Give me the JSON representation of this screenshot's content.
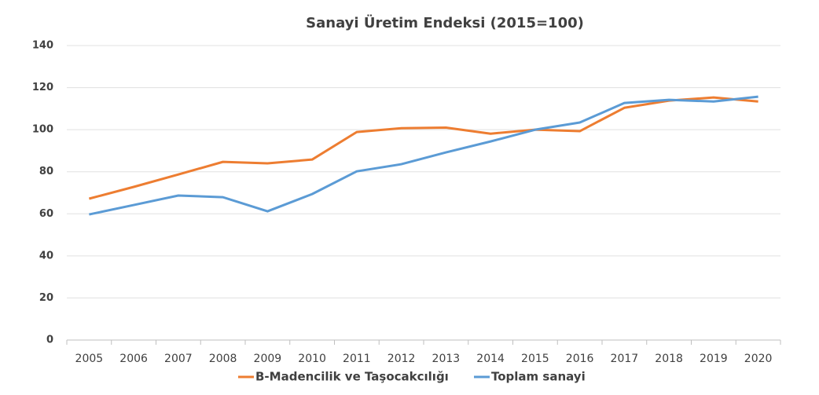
{
  "chart_data": {
    "type": "line",
    "title": "Sanayi Üretim Endeksi (2015=100)",
    "categories": [
      "2005",
      "2006",
      "2007",
      "2008",
      "2009",
      "2010",
      "2011",
      "2012",
      "2013",
      "2014",
      "2015",
      "2016",
      "2017",
      "2018",
      "2019",
      "2020"
    ],
    "series": [
      {
        "name": "B-Madencilik ve Taşocakcılığı",
        "color": "#ed7d31",
        "values": [
          67.2,
          72.8,
          78.7,
          84.7,
          84,
          85.8,
          98.9,
          100.7,
          101,
          98.1,
          100,
          99.3,
          110.4,
          113.8,
          115.3,
          113.4
        ]
      },
      {
        "name": "Toplam sanayi",
        "color": "#5b9bd5",
        "values": [
          59.7,
          64.2,
          68.7,
          67.9,
          61.2,
          69.4,
          80.2,
          83.6,
          89.2,
          94.4,
          100,
          103.4,
          112.7,
          114.2,
          113.4,
          115.7
        ]
      }
    ],
    "ylim": [
      0,
      140
    ],
    "yticks": [
      0,
      20,
      40,
      60,
      80,
      100,
      120,
      140
    ],
    "grid": true,
    "legend": "bottom"
  }
}
